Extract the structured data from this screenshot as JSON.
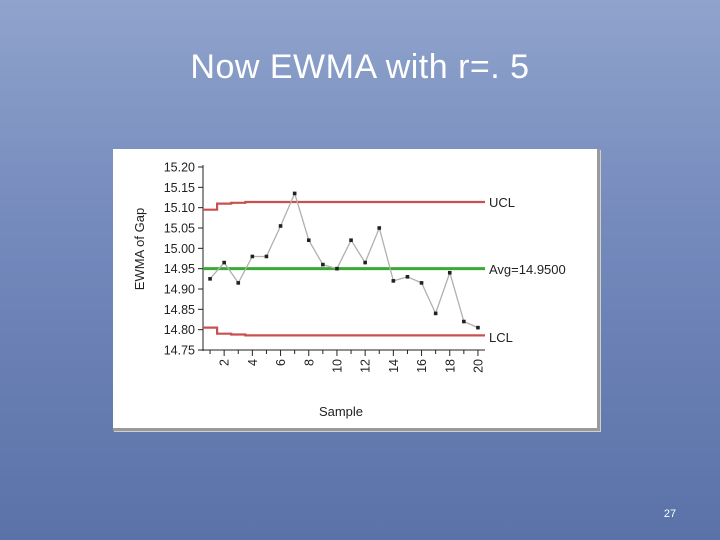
{
  "slide": {
    "title": "Now EWMA with r=. 5",
    "page_number": "27"
  },
  "chart_data": {
    "type": "line",
    "title": "",
    "xlabel": "Sample",
    "ylabel": "EWMA of Gap",
    "ylim": [
      14.75,
      15.2
    ],
    "xlim": [
      0.5,
      20.5
    ],
    "y_ticks": [
      "14.75",
      "14.80",
      "14.85",
      "14.90",
      "14.95",
      "15.00",
      "15.05",
      "15.10",
      "15.15",
      "15.20"
    ],
    "x_ticks": [
      "2",
      "4",
      "6",
      "8",
      "10",
      "12",
      "14",
      "16",
      "18",
      "20"
    ],
    "grid": false,
    "colors": {
      "line": "#b0b0b0",
      "point": "#222222",
      "limits": "#c8504e",
      "center": "#3aaa35"
    },
    "series": [
      {
        "x": [
          1,
          2,
          3,
          4,
          5,
          6,
          7,
          8,
          9,
          10,
          11,
          12,
          13,
          14,
          15,
          16,
          17,
          18,
          19,
          20
        ],
        "values": [
          14.925,
          14.965,
          14.915,
          14.98,
          14.98,
          15.055,
          15.135,
          15.02,
          14.96,
          14.95,
          15.02,
          14.965,
          15.05,
          14.92,
          14.93,
          14.915,
          14.84,
          14.94,
          14.82,
          14.805
        ]
      }
    ],
    "ucl": {
      "label": "UCL",
      "steps": [
        [
          0.5,
          15.095
        ],
        [
          1.5,
          15.095
        ],
        [
          1.5,
          15.11
        ],
        [
          2.5,
          15.11
        ],
        [
          2.5,
          15.112
        ],
        [
          3.5,
          15.112
        ],
        [
          3.5,
          15.114
        ],
        [
          20.5,
          15.114
        ]
      ]
    },
    "lcl": {
      "label": "LCL",
      "steps": [
        [
          0.5,
          14.805
        ],
        [
          1.5,
          14.805
        ],
        [
          1.5,
          14.79
        ],
        [
          2.5,
          14.79
        ],
        [
          2.5,
          14.788
        ],
        [
          3.5,
          14.788
        ],
        [
          3.5,
          14.786
        ],
        [
          20.5,
          14.786
        ]
      ]
    },
    "center": {
      "label": "Avg=14.9500",
      "value": 14.95
    }
  }
}
